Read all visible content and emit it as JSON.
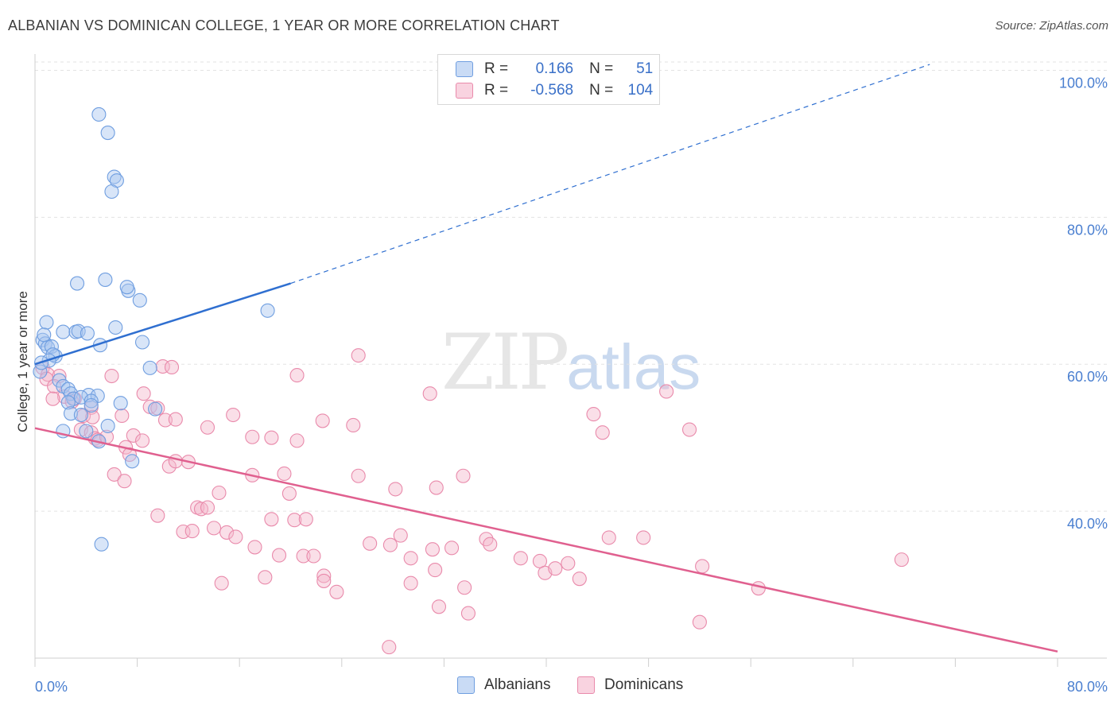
{
  "title": "ALBANIAN VS DOMINICAN COLLEGE, 1 YEAR OR MORE CORRELATION CHART",
  "source": "Source: ZipAtlas.com",
  "watermark": {
    "zip": "ZIP",
    "atlas": "atlas"
  },
  "legend": {
    "rows": [
      {
        "r_label": "R =",
        "r_value": "0.166",
        "n_label": "N =",
        "n_value": "51",
        "color": "#a9c5ef"
      },
      {
        "r_label": "R =",
        "r_value": "-0.568",
        "n_label": "N =",
        "n_value": "104",
        "color": "#f4b8cc"
      }
    ]
  },
  "bottom_legend": [
    {
      "label": "Albanians",
      "color": "#a9c5ef"
    },
    {
      "label": "Dominicans",
      "color": "#f4b8cc"
    }
  ],
  "colors": {
    "albanian_fill": "#a9c5ef",
    "albanian_stroke": "#6f9ee0",
    "albanian_line": "#2f6fd0",
    "dominican_fill": "#f4b8cc",
    "dominican_stroke": "#e98aab",
    "dominican_line": "#e0608f",
    "grid": "#e3e3e3",
    "tick_text": "#4a7fd0"
  },
  "chart_data": {
    "type": "scatter",
    "title": "ALBANIAN VS DOMINICAN COLLEGE, 1 YEAR OR MORE CORRELATION CHART",
    "xlabel": "",
    "ylabel": "College, 1 year or more",
    "xlim": [
      0,
      80
    ],
    "ylim": [
      20,
      102
    ],
    "x_tick_labels": [
      "0.0%",
      "80.0%"
    ],
    "y_ticks": [
      40,
      60,
      80,
      100
    ],
    "y_tick_labels": [
      "40.0%",
      "60.0%",
      "80.0%",
      "100.0%"
    ],
    "grid": true,
    "legend_position": "top-center",
    "series": [
      {
        "name": "Albanians",
        "points": [
          [
            5.0,
            94.0
          ],
          [
            5.7,
            91.5
          ],
          [
            6.2,
            85.5
          ],
          [
            6.4,
            85.0
          ],
          [
            6.0,
            83.5
          ],
          [
            3.3,
            71.0
          ],
          [
            5.5,
            71.5
          ],
          [
            7.3,
            70.0
          ],
          [
            7.2,
            70.5
          ],
          [
            8.2,
            68.7
          ],
          [
            18.2,
            67.3
          ],
          [
            0.9,
            65.7
          ],
          [
            2.2,
            64.4
          ],
          [
            3.2,
            64.4
          ],
          [
            3.4,
            64.5
          ],
          [
            4.1,
            64.2
          ],
          [
            6.3,
            65.0
          ],
          [
            0.6,
            63.3
          ],
          [
            0.8,
            62.8
          ],
          [
            1.0,
            62.3
          ],
          [
            1.3,
            62.4
          ],
          [
            8.4,
            63.0
          ],
          [
            5.1,
            62.6
          ],
          [
            1.6,
            61.1
          ],
          [
            1.4,
            61.3
          ],
          [
            1.1,
            60.5
          ],
          [
            9.0,
            59.5
          ],
          [
            0.4,
            59.0
          ],
          [
            1.9,
            57.8
          ],
          [
            2.2,
            57.0
          ],
          [
            2.6,
            56.6
          ],
          [
            2.8,
            56.0
          ],
          [
            4.2,
            55.8
          ],
          [
            3.0,
            55.3
          ],
          [
            3.6,
            55.5
          ],
          [
            4.9,
            55.7
          ],
          [
            4.4,
            55.0
          ],
          [
            2.6,
            54.8
          ],
          [
            4.4,
            54.4
          ],
          [
            6.7,
            54.7
          ],
          [
            9.4,
            53.9
          ],
          [
            2.8,
            53.3
          ],
          [
            3.6,
            53.1
          ],
          [
            5.7,
            51.6
          ],
          [
            4.0,
            50.9
          ],
          [
            2.2,
            50.9
          ],
          [
            5.0,
            49.5
          ],
          [
            7.6,
            46.8
          ],
          [
            5.2,
            35.5
          ],
          [
            0.7,
            64.0
          ],
          [
            0.5,
            60.2
          ]
        ]
      },
      {
        "name": "Dominicans",
        "points": [
          [
            0.6,
            59.5
          ],
          [
            1.0,
            58.6
          ],
          [
            1.9,
            58.4
          ],
          [
            0.9,
            58.0
          ],
          [
            1.5,
            57.0
          ],
          [
            2.3,
            55.6
          ],
          [
            1.4,
            55.3
          ],
          [
            3.1,
            55.3
          ],
          [
            2.9,
            54.9
          ],
          [
            4.4,
            54.1
          ],
          [
            3.8,
            53.0
          ],
          [
            4.5,
            52.8
          ],
          [
            3.6,
            51.1
          ],
          [
            4.4,
            50.7
          ],
          [
            4.7,
            49.9
          ],
          [
            4.9,
            49.7
          ],
          [
            5.6,
            50.1
          ],
          [
            6.0,
            58.4
          ],
          [
            6.8,
            53.0
          ],
          [
            7.1,
            48.7
          ],
          [
            7.7,
            50.3
          ],
          [
            8.4,
            49.6
          ],
          [
            7.4,
            47.7
          ],
          [
            8.5,
            56.0
          ],
          [
            9.0,
            54.2
          ],
          [
            9.6,
            54.0
          ],
          [
            10.0,
            59.7
          ],
          [
            10.7,
            59.6
          ],
          [
            10.2,
            52.4
          ],
          [
            11.0,
            52.5
          ],
          [
            6.2,
            45.0
          ],
          [
            7.0,
            44.1
          ],
          [
            10.5,
            46.1
          ],
          [
            11.0,
            46.8
          ],
          [
            12.0,
            46.7
          ],
          [
            13.5,
            51.4
          ],
          [
            15.5,
            53.1
          ],
          [
            17.0,
            50.1
          ],
          [
            18.5,
            50.0
          ],
          [
            20.5,
            49.6
          ],
          [
            17.0,
            44.9
          ],
          [
            19.5,
            45.1
          ],
          [
            14.4,
            42.5
          ],
          [
            19.9,
            42.4
          ],
          [
            12.7,
            40.5
          ],
          [
            13.0,
            40.3
          ],
          [
            13.5,
            40.5
          ],
          [
            9.6,
            39.4
          ],
          [
            18.5,
            38.9
          ],
          [
            20.3,
            38.8
          ],
          [
            21.2,
            38.9
          ],
          [
            11.6,
            37.2
          ],
          [
            12.3,
            37.3
          ],
          [
            14.0,
            37.7
          ],
          [
            15.0,
            37.1
          ],
          [
            15.7,
            36.5
          ],
          [
            17.2,
            35.1
          ],
          [
            19.1,
            34.0
          ],
          [
            21.0,
            33.9
          ],
          [
            21.8,
            33.9
          ],
          [
            18.0,
            31.0
          ],
          [
            22.6,
            31.2
          ],
          [
            22.6,
            30.5
          ],
          [
            14.6,
            30.2
          ],
          [
            23.6,
            29.0
          ],
          [
            20.5,
            58.5
          ],
          [
            25.3,
            61.2
          ],
          [
            22.5,
            52.3
          ],
          [
            24.9,
            51.7
          ],
          [
            25.3,
            44.8
          ],
          [
            28.2,
            43.0
          ],
          [
            30.9,
            56.0
          ],
          [
            31.4,
            43.2
          ],
          [
            33.5,
            44.8
          ],
          [
            26.2,
            35.6
          ],
          [
            27.8,
            35.4
          ],
          [
            28.6,
            36.7
          ],
          [
            29.4,
            33.6
          ],
          [
            31.1,
            34.8
          ],
          [
            32.6,
            35.0
          ],
          [
            29.4,
            30.2
          ],
          [
            31.3,
            32.0
          ],
          [
            35.3,
            36.2
          ],
          [
            35.6,
            35.5
          ],
          [
            33.6,
            29.6
          ],
          [
            31.6,
            27.0
          ],
          [
            33.9,
            26.1
          ],
          [
            27.7,
            21.5
          ],
          [
            38.0,
            33.6
          ],
          [
            39.5,
            33.2
          ],
          [
            39.9,
            31.6
          ],
          [
            40.7,
            32.2
          ],
          [
            41.7,
            32.9
          ],
          [
            42.6,
            30.8
          ],
          [
            43.7,
            53.2
          ],
          [
            44.4,
            50.7
          ],
          [
            44.9,
            36.4
          ],
          [
            47.6,
            36.4
          ],
          [
            49.4,
            56.3
          ],
          [
            51.2,
            51.1
          ],
          [
            52.2,
            32.5
          ],
          [
            52.0,
            24.9
          ],
          [
            56.6,
            29.5
          ],
          [
            67.8,
            33.4
          ]
        ]
      }
    ],
    "trend_lines": [
      {
        "series": "Albanians",
        "solid_from": [
          0,
          60.0
        ],
        "solid_to": [
          20,
          71.0
        ],
        "dashed_to": [
          70,
          100.8
        ]
      },
      {
        "series": "Dominicans",
        "from": [
          0,
          51.3
        ],
        "to": [
          80,
          20.9
        ]
      }
    ]
  }
}
